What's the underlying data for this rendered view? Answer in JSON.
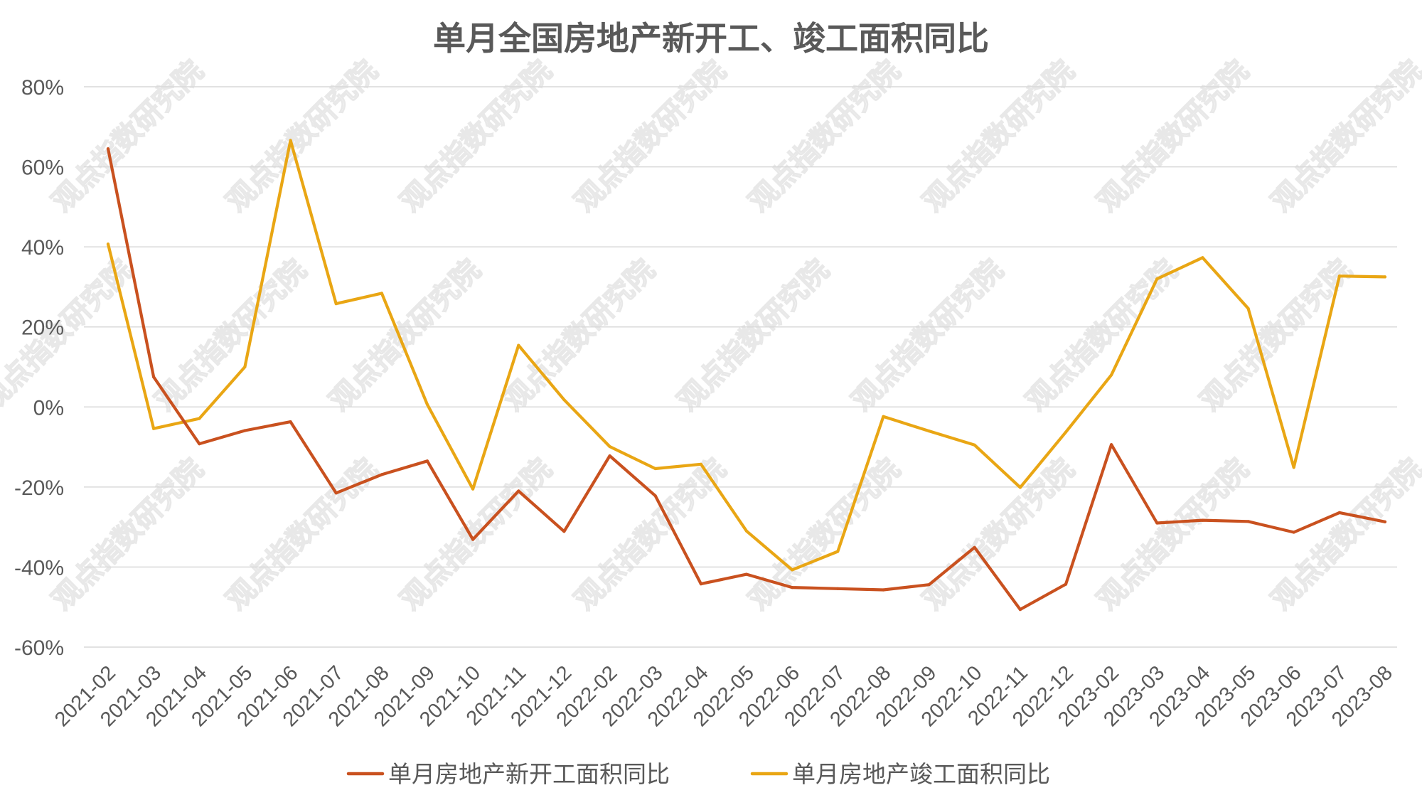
{
  "chart_data": {
    "type": "line",
    "title": "单月全国房地产新开工、竣工面积同比",
    "xlabel": "",
    "ylabel": "",
    "ylim": [
      -60,
      80
    ],
    "yticks": [
      80,
      60,
      40,
      20,
      0,
      -20,
      -40,
      -60
    ],
    "ytick_suffix": "%",
    "grid": true,
    "legend_position": "bottom",
    "categories": [
      "2021-02",
      "2021-03",
      "2021-04",
      "2021-05",
      "2021-06",
      "2021-07",
      "2021-08",
      "2021-09",
      "2021-10",
      "2021-11",
      "2021-12",
      "2022-02",
      "2022-03",
      "2022-04",
      "2022-05",
      "2022-06",
      "2022-07",
      "2022-08",
      "2022-09",
      "2022-10",
      "2022-11",
      "2022-12",
      "2023-02",
      "2023-03",
      "2023-04",
      "2023-05",
      "2023-06",
      "2023-07",
      "2023-08"
    ],
    "series": [
      {
        "name": "单月房地产新开工面积同比",
        "color": "#c9511f",
        "values": [
          64.5,
          7.5,
          -9.2,
          -5.9,
          -3.7,
          -21.5,
          -16.9,
          -13.5,
          -33.1,
          -21.0,
          -31.1,
          -12.2,
          -22.2,
          -44.2,
          -41.8,
          -45.1,
          -45.4,
          -45.7,
          -44.4,
          -35.1,
          -50.6,
          -44.3,
          -9.4,
          -29.0,
          -28.3,
          -28.6,
          -31.3,
          -26.4,
          -28.7
        ]
      },
      {
        "name": "单月房地产竣工面积同比",
        "color": "#e9a614",
        "values": [
          40.7,
          -5.4,
          -2.9,
          10.0,
          66.6,
          25.8,
          28.4,
          0.6,
          -20.5,
          15.4,
          1.8,
          -9.9,
          -15.4,
          -14.3,
          -31.0,
          -40.7,
          -36.1,
          -2.4,
          -6.0,
          -9.5,
          -20.1,
          -6.3,
          8.0,
          32.0,
          37.3,
          24.6,
          -15.1,
          32.7,
          32.5
        ]
      }
    ]
  },
  "watermark": {
    "text": "观点指数研究院"
  }
}
